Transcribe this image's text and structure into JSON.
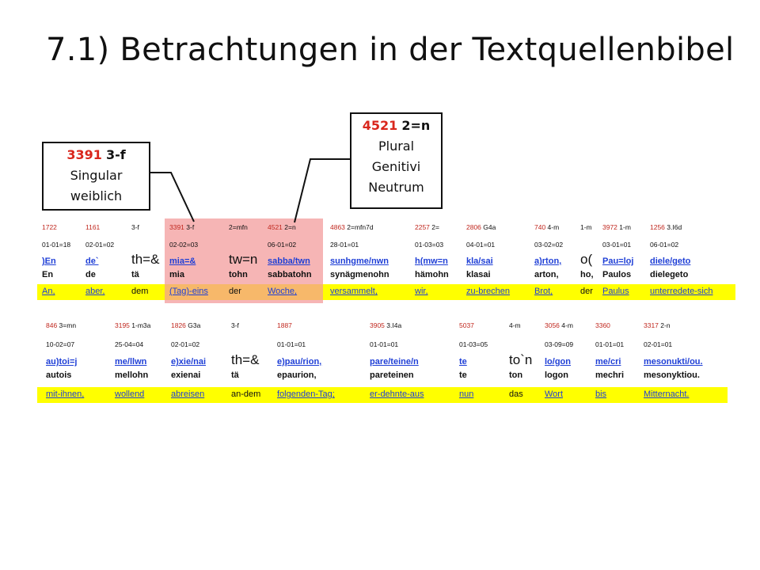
{
  "title": "7.1) Betrachtungen in der Textquellenbibel",
  "callouts": [
    {
      "num": "3391",
      "code": "3-f",
      "line2": "Singular",
      "line3": "weiblich"
    },
    {
      "num": "4521",
      "code": "2=n",
      "line2": "Plural",
      "line3": "Genitivi",
      "line4": "Neutrum"
    }
  ],
  "row1": [
    {
      "meta_n": "1722",
      "meta_c": "",
      "date": "01-01=18",
      "greek": ")En",
      "trans": "En",
      "germ": "An,"
    },
    {
      "meta_n": "1161",
      "meta_c": "",
      "date": "02-01=02",
      "greek": "de`",
      "trans": "de",
      "germ": "aber,"
    },
    {
      "meta_n": "",
      "meta_c": "3-f",
      "date": "",
      "greek": "th=&",
      "trans": "tä",
      "germ": "dem"
    },
    {
      "meta_n": "3391",
      "meta_c": "3-f",
      "date": "02-02=03",
      "greek": "mia=&",
      "trans": "mia",
      "germ": "(Tag)-eins"
    },
    {
      "meta_n": "",
      "meta_c": "2=mfn",
      "date": "",
      "greek": "tw=n",
      "trans": "tohn",
      "germ": "der"
    },
    {
      "meta_n": "4521",
      "meta_c": "2=n",
      "date": "06-01=02",
      "greek": "sabba/twn",
      "trans": "sabbatohn",
      "germ": "Woche,"
    },
    {
      "meta_n": "4863",
      "meta_c": "2=mfn7d",
      "date": "28-01=01",
      "greek": "sunhgme/nwn",
      "trans": "synägmenohn",
      "germ": "versammelt,"
    },
    {
      "meta_n": "2257",
      "meta_c": "2=",
      "date": "01-03=03",
      "greek": "h(mw=n",
      "trans": "hämohn",
      "germ": "wir,"
    },
    {
      "meta_n": "2806",
      "meta_c": "G4a",
      "date": "04-01=01",
      "greek": "kla/sai",
      "trans": "klasai",
      "germ": "zu-brechen"
    },
    {
      "meta_n": "740",
      "meta_c": "4-m",
      "date": "03-02=02",
      "greek": "a)rton,",
      "trans": "arton,",
      "germ": "Brot,"
    },
    {
      "meta_n": "",
      "meta_c": "1-m",
      "date": "",
      "greek": "o(",
      "trans": "ho,",
      "germ": "der"
    },
    {
      "meta_n": "3972",
      "meta_c": "1-m",
      "date": "03-01=01",
      "greek": "Pau=loj",
      "trans": "Paulos",
      "germ": "Paulus"
    },
    {
      "meta_n": "1256",
      "meta_c": "3.I6d",
      "date": "06-01=02",
      "greek": "diele/geto",
      "trans": "dielegeto",
      "germ": "unterredete-sich"
    }
  ],
  "row2": [
    {
      "meta_n": "846",
      "meta_c": "3=mn",
      "date": "10-02=07",
      "greek": "au)toi=j",
      "trans": "autois",
      "germ": "mit-ihnen,"
    },
    {
      "meta_n": "3195",
      "meta_c": "1-m3a",
      "date": "25-04=04",
      "greek": "me/llwn",
      "trans": "mellohn",
      "germ": "wollend"
    },
    {
      "meta_n": "1826",
      "meta_c": "G3a",
      "date": "02-01=02",
      "greek": "e)xie/nai",
      "trans": "exienai",
      "germ": "abreisen"
    },
    {
      "meta_n": "",
      "meta_c": "3-f",
      "date": "",
      "greek": "th=&",
      "trans": "tä",
      "germ": "an-dem"
    },
    {
      "meta_n": "1887",
      "meta_c": "",
      "date": "01-01=01",
      "greek": "e)pau/rion,",
      "trans": "epaurion,",
      "germ": "folgenden-Tag;"
    },
    {
      "meta_n": "3905",
      "meta_c": "3.I4a",
      "date": "01-01=01",
      "greek": "pare/teine/n",
      "trans": "pareteinen",
      "germ": "er-dehnte-aus"
    },
    {
      "meta_n": "5037",
      "meta_c": "",
      "date": "01-03=05",
      "greek": "te",
      "trans": "te",
      "germ": "nun"
    },
    {
      "meta_n": "",
      "meta_c": "4-m",
      "date": "",
      "greek": "to`n",
      "trans": "ton",
      "germ": "das"
    },
    {
      "meta_n": "3056",
      "meta_c": "4-m",
      "date": "03-09=09",
      "greek": "lo/gon",
      "trans": "logon",
      "germ": "Wort"
    },
    {
      "meta_n": "3360",
      "meta_c": "",
      "date": "01-01=01",
      "greek": "me/cri",
      "trans": "mechri",
      "germ": "bis"
    },
    {
      "meta_n": "3317",
      "meta_c": "2-n",
      "date": "02-01=01",
      "greek": "mesonukti/ou.",
      "trans": "mesonyktiou.",
      "germ": "Mitternacht."
    }
  ]
}
